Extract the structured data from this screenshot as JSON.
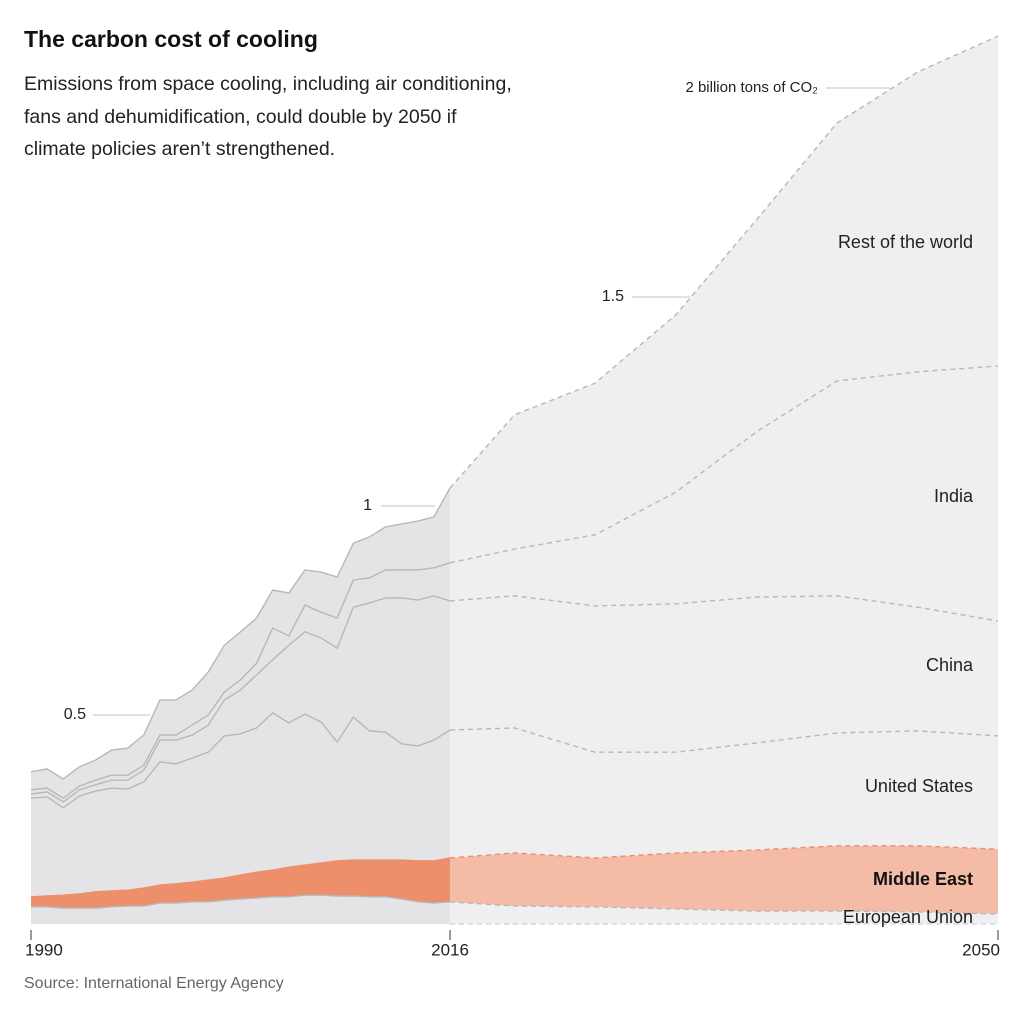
{
  "chart_data": {
    "type": "stacked-area",
    "title": "The carbon cost of cooling",
    "subtitle": "Emissions from space cooling, including air conditioning, fans and dehumidification, could double by 2050 if climate policies aren’t strengthened.",
    "source": "Source: International Energy Agency",
    "x": [
      1990,
      1991,
      1992,
      1993,
      1994,
      1995,
      1996,
      1997,
      1998,
      1999,
      2000,
      2001,
      2002,
      2003,
      2004,
      2005,
      2006,
      2007,
      2008,
      2009,
      2010,
      2011,
      2012,
      2013,
      2014,
      2015,
      2016,
      2020,
      2025,
      2030,
      2035,
      2040,
      2045,
      2050
    ],
    "xlim": [
      1990,
      2050
    ],
    "xticks": [
      1990,
      2016,
      2050
    ],
    "ylim": [
      0,
      2.2
    ],
    "yticks": [
      0.5,
      1,
      1.5,
      {
        "value": 2,
        "label": "2 billion tons of CO₂"
      }
    ],
    "forecast_from": 2016,
    "series": [
      {
        "name": "European Union",
        "color": "#e4e4e7",
        "bold": false,
        "values": [
          0.041,
          0.041,
          0.038,
          0.038,
          0.038,
          0.041,
          0.043,
          0.043,
          0.05,
          0.05,
          0.053,
          0.053,
          0.057,
          0.06,
          0.062,
          0.065,
          0.065,
          0.069,
          0.069,
          0.067,
          0.067,
          0.065,
          0.065,
          0.06,
          0.053,
          0.05,
          0.053,
          0.043,
          0.041,
          0.036,
          0.031,
          0.031,
          0.029,
          0.024
        ]
      },
      {
        "name": "Middle East",
        "color": "#ec8f6a",
        "bold": true,
        "values": [
          0.024,
          0.026,
          0.031,
          0.034,
          0.039,
          0.038,
          0.038,
          0.043,
          0.043,
          0.046,
          0.047,
          0.052,
          0.053,
          0.057,
          0.062,
          0.064,
          0.071,
          0.072,
          0.077,
          0.084,
          0.086,
          0.088,
          0.088,
          0.093,
          0.098,
          0.101,
          0.105,
          0.127,
          0.117,
          0.134,
          0.146,
          0.156,
          0.158,
          0.155
        ]
      },
      {
        "name": "United States",
        "color": "#e4e4e7",
        "bold": false,
        "values": [
          0.236,
          0.237,
          0.209,
          0.234,
          0.241,
          0.246,
          0.242,
          0.254,
          0.295,
          0.287,
          0.297,
          0.306,
          0.34,
          0.338,
          0.345,
          0.376,
          0.345,
          0.361,
          0.337,
          0.284,
          0.342,
          0.309,
          0.306,
          0.278,
          0.275,
          0.289,
          0.306,
          0.299,
          0.253,
          0.241,
          0.256,
          0.27,
          0.275,
          0.271
        ]
      },
      {
        "name": "China",
        "color": "#e4e4e7",
        "bold": false,
        "values": [
          0.01,
          0.012,
          0.014,
          0.015,
          0.015,
          0.019,
          0.021,
          0.028,
          0.052,
          0.057,
          0.055,
          0.065,
          0.086,
          0.105,
          0.127,
          0.127,
          0.186,
          0.197,
          0.201,
          0.225,
          0.263,
          0.306,
          0.321,
          0.349,
          0.349,
          0.345,
          0.309,
          0.316,
          0.35,
          0.355,
          0.349,
          0.328,
          0.296,
          0.275
        ]
      },
      {
        "name": "India",
        "color": "#e4e4e7",
        "bold": false,
        "values": [
          0.01,
          0.009,
          0.009,
          0.009,
          0.011,
          0.012,
          0.012,
          0.012,
          0.012,
          0.012,
          0.024,
          0.024,
          0.019,
          0.024,
          0.028,
          0.076,
          0.022,
          0.064,
          0.062,
          0.072,
          0.065,
          0.06,
          0.067,
          0.067,
          0.072,
          0.067,
          0.091,
          0.112,
          0.17,
          0.267,
          0.395,
          0.514,
          0.563,
          0.61
        ]
      },
      {
        "name": "Rest of the world",
        "color": "#e4e4e7",
        "bold": false,
        "values": [
          0.043,
          0.046,
          0.046,
          0.046,
          0.048,
          0.06,
          0.065,
          0.072,
          0.084,
          0.084,
          0.084,
          0.103,
          0.112,
          0.115,
          0.108,
          0.091,
          0.103,
          0.084,
          0.096,
          0.098,
          0.088,
          0.098,
          0.103,
          0.11,
          0.117,
          0.122,
          0.179,
          0.321,
          0.363,
          0.424,
          0.507,
          0.617,
          0.717,
          0.789
        ]
      }
    ]
  }
}
